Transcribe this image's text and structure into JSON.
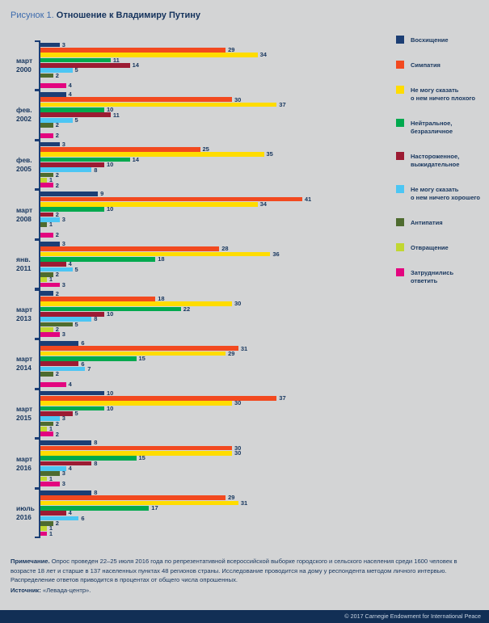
{
  "title_block": {
    "figure_label": "Рисунок 1.",
    "title": "Отношение к Владимиру Путину"
  },
  "chart_data": {
    "type": "bar",
    "orientation": "horizontal",
    "title": "Отношение к Владимиру Путину",
    "unit": "percent of respondents",
    "xlim": [
      0,
      45
    ],
    "grid": false,
    "legend_position": "right",
    "categories": [
      "март 2000",
      "фев. 2002",
      "фев. 2005",
      "март 2008",
      "янв. 2011",
      "март 2013",
      "март 2014",
      "март 2015",
      "март 2016",
      "июль 2016"
    ],
    "series": [
      {
        "name": "Восхищение",
        "legend_lines": [
          "Восхищение"
        ],
        "color": "#1c3e74",
        "values": [
          3,
          4,
          3,
          9,
          3,
          2,
          6,
          10,
          8,
          8
        ]
      },
      {
        "name": "Симпатия",
        "legend_lines": [
          "Симпатия"
        ],
        "color": "#f2491f",
        "values": [
          29,
          30,
          25,
          41,
          28,
          18,
          31,
          37,
          30,
          29
        ]
      },
      {
        "name": "Не могу сказать о нем ничего плохого",
        "legend_lines": [
          "Не могу сказать",
          "о нем ничего плохого"
        ],
        "color": "#ffdc00",
        "values": [
          34,
          37,
          35,
          34,
          36,
          30,
          29,
          30,
          30,
          31
        ]
      },
      {
        "name": "Нейтральное, безразличное",
        "legend_lines": [
          "Нейтральное,",
          "безразличное"
        ],
        "color": "#00a94e",
        "values": [
          11,
          10,
          14,
          10,
          18,
          22,
          15,
          10,
          15,
          17
        ]
      },
      {
        "name": "Настороженное, выжидательное",
        "legend_lines": [
          "Настороженное,",
          "выжидательное"
        ],
        "color": "#9c1b33",
        "values": [
          14,
          11,
          10,
          2,
          4,
          10,
          6,
          5,
          8,
          4
        ]
      },
      {
        "name": "Не могу сказать о нем ничего хорошего",
        "legend_lines": [
          "Не могу сказать",
          "о нем ничего хорошего"
        ],
        "color": "#4cc6f4",
        "values": [
          5,
          5,
          8,
          3,
          5,
          8,
          7,
          3,
          4,
          6
        ]
      },
      {
        "name": "Антипатия",
        "legend_lines": [
          "Антипатия"
        ],
        "color": "#4e6b2f",
        "values": [
          2,
          2,
          2,
          1,
          2,
          5,
          2,
          2,
          3,
          2
        ]
      },
      {
        "name": "Отвращение",
        "legend_lines": [
          "Отвращение"
        ],
        "color": "#c1d731",
        "values": [
          null,
          null,
          1,
          null,
          1,
          2,
          null,
          1,
          1,
          1
        ]
      },
      {
        "name": "Затруднились ответить",
        "legend_lines": [
          "Затруднились",
          "ответить"
        ],
        "color": "#e3057f",
        "values": [
          4,
          2,
          2,
          2,
          3,
          3,
          4,
          2,
          3,
          1
        ]
      }
    ]
  },
  "notes": {
    "note_label": "Примечание.",
    "note_text": "Опрос проведен 22–25 июля 2016 года по репрезентативной всероссийской выборке городского и сельского населения среди 1600 человек в возрасте 18 лет и старше в 137 населенных пунктах 48 регионов страны. Исследование проводится на дому у респондента методом личного интервью. Распределение ответов приводится в процентах от общего числа опрошенных.",
    "source_label": "Источник:",
    "source_text": "«Левада-центр»."
  },
  "footer": {
    "copyright": "© 2017 Carnegie Endowment for International Peace"
  }
}
